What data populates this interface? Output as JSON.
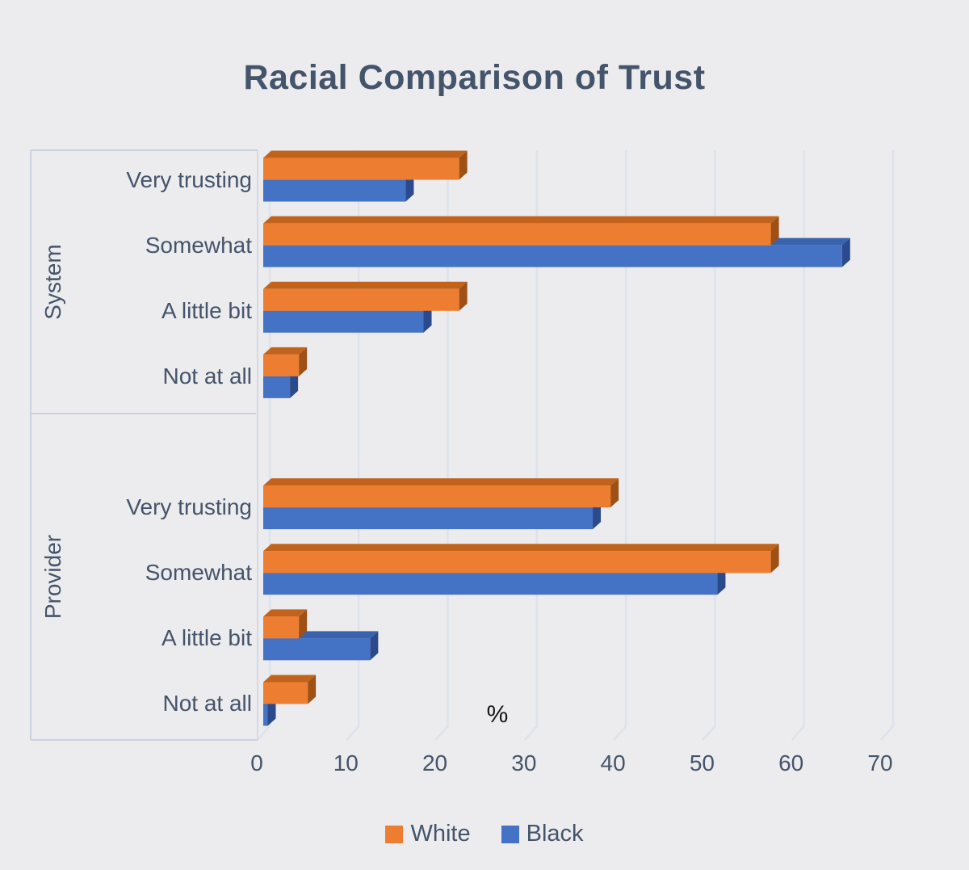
{
  "title": "Racial Comparison of Trust",
  "chart_data": {
    "type": "bar",
    "orientation": "horizontal",
    "style": "3d",
    "title": "Racial Comparison of Trust",
    "xlabel": "%",
    "xlim": [
      0,
      70
    ],
    "xticks": [
      0,
      10,
      20,
      30,
      40,
      50,
      60,
      70
    ],
    "grid": true,
    "legend_position": "bottom",
    "groups": [
      {
        "label": "System",
        "categories": [
          "Very trusting",
          "Somewhat",
          "A little bit",
          "Not at all"
        ],
        "series": [
          {
            "name": "White",
            "color": "#ED7D31",
            "values": [
              22,
              57,
              22,
              4
            ]
          },
          {
            "name": "Black",
            "color": "#4472C4",
            "values": [
              16,
              65,
              18,
              3
            ]
          }
        ]
      },
      {
        "label": "Provider",
        "categories": [
          "Very trusting",
          "Somewhat",
          "A little bit",
          "Not at all"
        ],
        "series": [
          {
            "name": "White",
            "color": "#ED7D31",
            "values": [
              39,
              57,
              4,
              5
            ]
          },
          {
            "name": "Black",
            "color": "#4472C4",
            "values": [
              37,
              51,
              12,
              0.5
            ]
          }
        ]
      }
    ],
    "legend": [
      {
        "label": "White",
        "color": "#ED7D31"
      },
      {
        "label": "Black",
        "color": "#4472C4"
      }
    ]
  },
  "colors": {
    "background": "#ececee",
    "text": "#44546A",
    "xlabel_text": "#151515",
    "gridline": "#dde2ec",
    "border": "#cbd2df",
    "axis_line": "#d4d9e4",
    "orange_front": "#ED7D31",
    "orange_top": "#C2631C",
    "orange_side": "#9F5015",
    "blue_front": "#4472C4",
    "blue_top": "#3A63AE",
    "blue_side": "#2B4A8B"
  }
}
